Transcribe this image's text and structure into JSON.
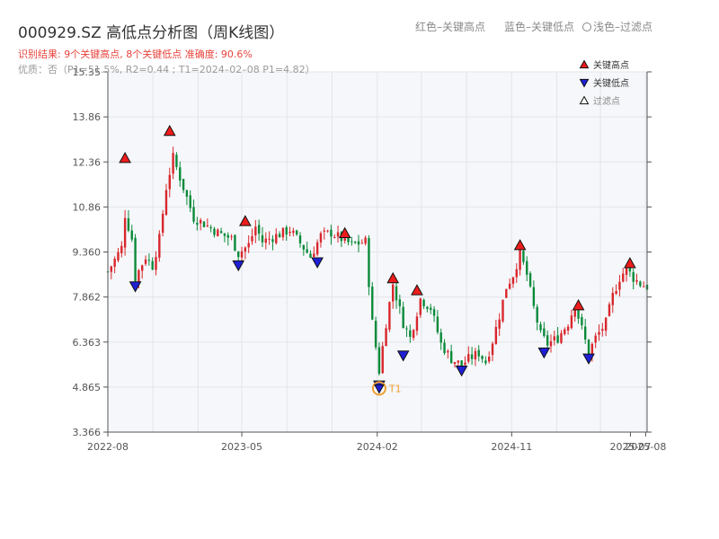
{
  "header": {
    "title": "000929.SZ 高低点分析图（周K线图）",
    "legend_red": "红色–关键高点",
    "legend_blue": "蓝色–关键低点",
    "legend_light": "浅色–过滤点",
    "result_text": "识别结果: 9个关键高点, 8个关键低点  准确度: 90.6%",
    "quality_text": "优质：否（P1=51.5%, R2=0.44 ; T1=2024–02–08 P1=4.82）"
  },
  "chart_data": {
    "type": "candlestick",
    "title": "000929.SZ 高低点分析图（周K线图）",
    "x_tick_labels": [
      "2022-08",
      "2023-05",
      "2024-02",
      "2024-11",
      "2025-07",
      "2025-08"
    ],
    "y_tick_labels": [
      "3.366",
      "4.865",
      "6.363",
      "7.862",
      "9.360",
      "10.86",
      "12.36",
      "13.86",
      "15.35"
    ],
    "ylim": [
      3.366,
      15.35
    ],
    "grid": true,
    "legend_position": "top-right",
    "legend": [
      {
        "label": "关键高点",
        "marker": "triangle-up",
        "color": "#ee1c1c"
      },
      {
        "label": "关键低点",
        "marker": "triangle-down",
        "color": "#1f1fd6"
      },
      {
        "label": "过滤点",
        "marker": "triangle-up-hollow",
        "color": "#ffffff"
      }
    ],
    "colors": {
      "up": "#d9262c",
      "down": "#0a8a3a",
      "high_marker": "#ee1c1c",
      "low_marker": "#1f1fd6",
      "t1_ring": "#f0a030"
    },
    "close_anchors": [
      [
        "2022-08-01",
        8.7
      ],
      [
        "2022-08-29",
        9.5
      ],
      [
        "2022-09-05",
        10.6
      ],
      [
        "2022-09-19",
        9.8
      ],
      [
        "2022-09-26",
        8.5
      ],
      [
        "2022-10-17",
        9.2
      ],
      [
        "2022-10-31",
        8.9
      ],
      [
        "2022-11-14",
        9.8
      ],
      [
        "2022-11-28",
        11.5
      ],
      [
        "2022-12-12",
        12.5
      ],
      [
        "2023-01-02",
        11.5
      ],
      [
        "2023-01-23",
        10.5
      ],
      [
        "2023-02-13",
        10.3
      ],
      [
        "2023-03-13",
        10.0
      ],
      [
        "2023-04-10",
        9.8
      ],
      [
        "2023-04-24",
        9.3
      ],
      [
        "2023-05-15",
        9.6
      ],
      [
        "2023-05-29",
        10.2
      ],
      [
        "2023-06-12",
        9.7
      ],
      [
        "2023-07-10",
        9.9
      ],
      [
        "2023-08-07",
        10.1
      ],
      [
        "2023-09-04",
        9.5
      ],
      [
        "2023-09-18",
        9.2
      ],
      [
        "2023-10-09",
        9.9
      ],
      [
        "2023-10-30",
        10.0
      ],
      [
        "2023-11-20",
        9.8
      ],
      [
        "2023-12-11",
        9.6
      ],
      [
        "2024-01-08",
        9.7
      ],
      [
        "2024-01-22",
        7.0
      ],
      [
        "2024-02-05",
        5.4
      ],
      [
        "2024-02-19",
        7.0
      ],
      [
        "2024-03-04",
        8.3
      ],
      [
        "2024-03-25",
        7.0
      ],
      [
        "2024-04-08",
        6.5
      ],
      [
        "2024-04-29",
        7.8
      ],
      [
        "2024-05-20",
        7.5
      ],
      [
        "2024-06-10",
        6.3
      ],
      [
        "2024-07-01",
        5.8
      ],
      [
        "2024-07-22",
        5.6
      ],
      [
        "2024-08-05",
        5.8
      ],
      [
        "2024-08-26",
        6.0
      ],
      [
        "2024-09-09",
        5.7
      ],
      [
        "2024-09-23",
        6.4
      ],
      [
        "2024-10-08",
        7.3
      ],
      [
        "2024-10-21",
        8.2
      ],
      [
        "2024-11-04",
        8.6
      ],
      [
        "2024-11-18",
        9.3
      ],
      [
        "2024-12-02",
        8.6
      ],
      [
        "2024-12-16",
        7.5
      ],
      [
        "2024-12-30",
        6.6
      ],
      [
        "2025-01-13",
        6.3
      ],
      [
        "2025-02-03",
        6.5
      ],
      [
        "2025-02-24",
        7.0
      ],
      [
        "2025-03-10",
        7.6
      ],
      [
        "2025-03-24",
        6.8
      ],
      [
        "2025-04-07",
        6.0
      ],
      [
        "2025-04-21",
        6.5
      ],
      [
        "2025-05-12",
        7.0
      ],
      [
        "2025-05-26",
        7.9
      ],
      [
        "2025-06-09",
        8.5
      ],
      [
        "2025-06-23",
        8.8
      ],
      [
        "2025-07-07",
        8.5
      ],
      [
        "2025-07-21",
        8.3
      ],
      [
        "2025-08-04",
        8.2
      ]
    ],
    "key_highs": [
      {
        "date": "2022-09-05",
        "value": 12.3
      },
      {
        "date": "2022-12-05",
        "value": 13.2
      },
      {
        "date": "2023-05-08",
        "value": 10.2
      },
      {
        "date": "2023-11-27",
        "value": 9.8
      },
      {
        "date": "2024-03-04",
        "value": 8.3
      },
      {
        "date": "2024-04-22",
        "value": 7.9
      },
      {
        "date": "2024-11-18",
        "value": 9.4
      },
      {
        "date": "2025-03-17",
        "value": 7.4
      },
      {
        "date": "2025-06-30",
        "value": 8.8
      }
    ],
    "key_lows": [
      {
        "date": "2022-09-26",
        "value": 8.4
      },
      {
        "date": "2023-04-24",
        "value": 9.1
      },
      {
        "date": "2023-10-02",
        "value": 9.2
      },
      {
        "date": "2024-02-05",
        "value": 5.1
      },
      {
        "date": "2024-03-25",
        "value": 6.1
      },
      {
        "date": "2024-07-22",
        "value": 5.6
      },
      {
        "date": "2025-01-06",
        "value": 6.2
      },
      {
        "date": "2025-04-07",
        "value": 6.0
      }
    ],
    "t1_point": {
      "label": "T1",
      "date": "2024-02-05",
      "value": 4.82
    }
  }
}
